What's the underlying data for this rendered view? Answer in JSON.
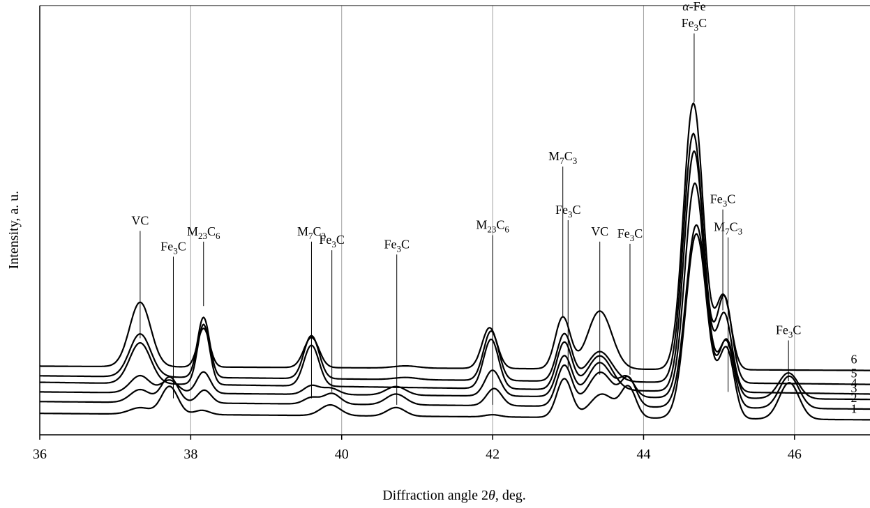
{
  "chart_data": {
    "type": "line",
    "xlabel_prefix": "Diffraction angle 2",
    "xlabel_symbol": "θ",
    "xlabel_suffix": ", deg.",
    "ylabel": "Intensity, a. u.",
    "xlim": [
      36,
      47
    ],
    "x_ticks": [
      "36",
      "38",
      "40",
      "42",
      "44",
      "46"
    ],
    "grid": "vertical",
    "series": [
      {
        "label": "1",
        "baseline": 0.1,
        "end": 0.07,
        "peaks": [
          [
            37.33,
            0.03,
            0.14
          ],
          [
            37.72,
            0.13,
            0.11
          ],
          [
            38.15,
            0.02,
            0.1
          ],
          [
            39.85,
            0.05,
            0.13
          ],
          [
            40.72,
            0.04,
            0.12
          ],
          [
            42.0,
            0.01,
            0.1
          ],
          [
            42.95,
            0.18,
            0.1
          ],
          [
            43.45,
            0.11,
            0.16
          ],
          [
            43.8,
            0.14,
            0.1
          ],
          [
            44.7,
            0.86,
            0.14
          ],
          [
            45.1,
            0.32,
            0.1
          ],
          [
            45.93,
            0.17,
            0.13
          ]
        ]
      },
      {
        "label": "2",
        "baseline": 0.155,
        "end": 0.12,
        "peaks": [
          [
            37.33,
            0.06,
            0.13
          ],
          [
            37.72,
            0.12,
            0.11
          ],
          [
            38.18,
            0.06,
            0.09
          ],
          [
            39.6,
            0.03,
            0.1
          ],
          [
            39.87,
            0.05,
            0.11
          ],
          [
            40.72,
            0.05,
            0.13
          ],
          [
            42.02,
            0.08,
            0.1
          ],
          [
            42.95,
            0.19,
            0.1
          ],
          [
            43.43,
            0.16,
            0.16
          ],
          [
            43.8,
            0.13,
            0.1
          ],
          [
            44.7,
            0.85,
            0.14
          ],
          [
            45.1,
            0.3,
            0.1
          ],
          [
            45.93,
            0.15,
            0.13
          ]
        ]
      },
      {
        "label": "3",
        "baseline": 0.2,
        "end": 0.165,
        "peaks": [
          [
            37.33,
            0.08,
            0.13
          ],
          [
            37.72,
            0.06,
            0.11
          ],
          [
            38.17,
            0.1,
            0.09
          ],
          [
            39.6,
            0.04,
            0.1
          ],
          [
            39.85,
            0.03,
            0.11
          ],
          [
            40.72,
            0.04,
            0.13
          ],
          [
            42.0,
            0.12,
            0.1
          ],
          [
            42.95,
            0.19,
            0.1
          ],
          [
            43.42,
            0.16,
            0.15
          ],
          [
            43.78,
            0.09,
            0.1
          ],
          [
            44.68,
            1.0,
            0.13
          ],
          [
            45.1,
            0.27,
            0.1
          ],
          [
            45.92,
            0.12,
            0.13
          ]
        ]
      },
      {
        "label": "4",
        "baseline": 0.245,
        "end": 0.19,
        "peaks": [
          [
            37.33,
            0.19,
            0.14
          ],
          [
            38.17,
            0.28,
            0.08
          ],
          [
            39.6,
            0.19,
            0.1
          ],
          [
            40.8,
            0.0,
            0.1
          ],
          [
            41.98,
            0.23,
            0.1
          ],
          [
            42.95,
            0.22,
            0.1
          ],
          [
            43.42,
            0.16,
            0.16
          ],
          [
            44.67,
            1.12,
            0.13
          ],
          [
            45.07,
            0.36,
            0.1
          ],
          [
            45.3,
            0.0,
            0.1
          ]
        ]
      },
      {
        "label": "5",
        "baseline": 0.275,
        "end": 0.235,
        "peaks": [
          [
            37.33,
            0.2,
            0.14
          ],
          [
            38.17,
            0.28,
            0.08
          ],
          [
            39.6,
            0.2,
            0.1
          ],
          [
            40.85,
            0.01,
            0.15
          ],
          [
            41.98,
            0.23,
            0.1
          ],
          [
            42.95,
            0.22,
            0.1
          ],
          [
            43.42,
            0.14,
            0.16
          ],
          [
            44.66,
            1.16,
            0.13
          ],
          [
            45.07,
            0.4,
            0.1
          ]
        ]
      },
      {
        "label": "6",
        "baseline": 0.32,
        "end": 0.3,
        "peaks": [
          [
            37.33,
            0.3,
            0.14
          ],
          [
            38.17,
            0.18,
            0.08
          ],
          [
            39.6,
            0.14,
            0.1
          ],
          [
            40.85,
            0.01,
            0.16
          ],
          [
            41.96,
            0.19,
            0.1
          ],
          [
            42.93,
            0.24,
            0.1
          ],
          [
            43.42,
            0.27,
            0.16
          ],
          [
            44.66,
            1.24,
            0.13
          ],
          [
            45.06,
            0.34,
            0.1
          ]
        ]
      }
    ],
    "annotations": [
      {
        "x": 37.33,
        "y_top": 0.95,
        "y_bot": 0.45,
        "base": "VC"
      },
      {
        "x": 37.77,
        "y_top": 0.83,
        "y_bot": 0.17,
        "base": "Fe",
        "sub": "3",
        "tail": "C"
      },
      {
        "x": 38.17,
        "y_top": 0.9,
        "y_bot": 0.6,
        "base": "M",
        "sub": "23",
        "tail": "C",
        "sub2": "6"
      },
      {
        "x": 39.6,
        "y_top": 0.9,
        "y_bot": 0.17,
        "base": "M",
        "sub": "7",
        "tail": "C",
        "sub2": "3"
      },
      {
        "x": 39.87,
        "y_top": 0.86,
        "y_bot": 0.2,
        "base": "Fe",
        "sub": "3",
        "tail": "C"
      },
      {
        "x": 40.73,
        "y_top": 0.84,
        "y_bot": 0.14,
        "base": "Fe",
        "sub": "3",
        "tail": "C"
      },
      {
        "x": 42.0,
        "y_top": 0.93,
        "y_bot": 0.14,
        "base": "M",
        "sub": "23",
        "tail": "C",
        "sub2": "6"
      },
      {
        "x": 42.93,
        "y_top": 1.25,
        "y_bot": 0.55,
        "base": "M",
        "sub": "7",
        "tail": "C",
        "sub2": "3"
      },
      {
        "x": 43.0,
        "y_top": 1.0,
        "y_bot": 0.3,
        "base": "Fe",
        "sub": "3",
        "tail": "C"
      },
      {
        "x": 43.42,
        "y_top": 0.9,
        "y_bot": 0.28,
        "base": "VC"
      },
      {
        "x": 43.82,
        "y_top": 0.89,
        "y_bot": 0.28,
        "base": "Fe",
        "sub": "3",
        "tail": "C"
      },
      {
        "x": 44.67,
        "y_top": 1.87,
        "y_bot": 1.55,
        "base": "Fe",
        "sub": "3",
        "tail": "C",
        "top_line": "α-Fe"
      },
      {
        "x": 45.05,
        "y_top": 1.05,
        "y_bot": 0.58,
        "base": "Fe",
        "sub": "3",
        "tail": "C"
      },
      {
        "x": 45.12,
        "y_top": 0.92,
        "y_bot": 0.2,
        "base": "M",
        "sub": "7",
        "tail": "C",
        "sub2": "3"
      },
      {
        "x": 45.92,
        "y_top": 0.44,
        "y_bot": 0.25,
        "base": "Fe",
        "sub": "3",
        "tail": "C"
      }
    ]
  }
}
